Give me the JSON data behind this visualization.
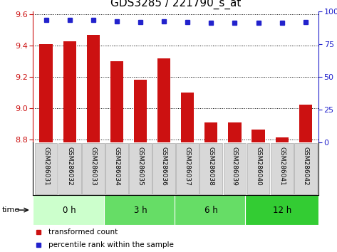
{
  "title": "GDS3285 / 221790_s_at",
  "samples": [
    "GSM286031",
    "GSM286032",
    "GSM286033",
    "GSM286034",
    "GSM286035",
    "GSM286036",
    "GSM286037",
    "GSM286038",
    "GSM286039",
    "GSM286040",
    "GSM286041",
    "GSM286042"
  ],
  "bar_values": [
    9.41,
    9.43,
    9.47,
    9.3,
    9.18,
    9.32,
    9.1,
    8.91,
    8.91,
    8.86,
    8.81,
    9.02
  ],
  "percentile_values": [
    93.5,
    93.5,
    93.5,
    92.5,
    92.0,
    92.5,
    92.0,
    91.5,
    91.5,
    91.0,
    91.0,
    92.0
  ],
  "ylim_left": [
    8.78,
    9.62
  ],
  "ylim_right": [
    0,
    100
  ],
  "yticks_left": [
    8.8,
    9.0,
    9.2,
    9.4,
    9.6
  ],
  "yticks_right": [
    0,
    25,
    50,
    75,
    100
  ],
  "bar_color": "#cc1111",
  "dot_color": "#2222cc",
  "background_color": "#ffffff",
  "time_groups": [
    {
      "label": "0 h",
      "start": 0,
      "end": 3,
      "color": "#ccffcc"
    },
    {
      "label": "3 h",
      "start": 3,
      "end": 6,
      "color": "#66dd66"
    },
    {
      "label": "6 h",
      "start": 6,
      "end": 9,
      "color": "#66dd66"
    },
    {
      "label": "12 h",
      "start": 9,
      "end": 12,
      "color": "#33cc33"
    }
  ],
  "legend_bar_label": "transformed count",
  "legend_dot_label": "percentile rank within the sample",
  "time_label": "time",
  "title_fontsize": 11,
  "tick_fontsize": 8,
  "bar_width": 0.55,
  "sample_box_color": "#d8d8d8",
  "sample_box_edge": "#aaaaaa"
}
